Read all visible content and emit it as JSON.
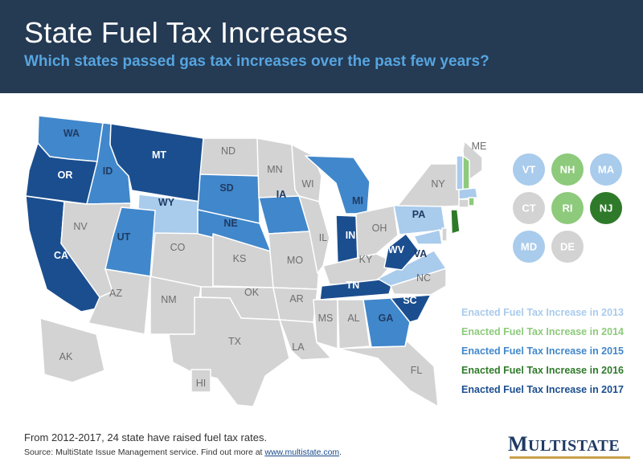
{
  "header": {
    "title": "State Fuel Tax Increases",
    "subtitle": "Which states passed gas tax increases over the past few years?"
  },
  "colors": {
    "header_bg": "#253a53",
    "none": "#d3d3d3",
    "y2013": "#a9cbec",
    "y2014": "#8dca7b",
    "y2015": "#4187cb",
    "y2016": "#2f7a2a",
    "y2017": "#1b4e8f"
  },
  "map": {
    "states": [
      {
        "abbr": "WA",
        "cat": "y2015"
      },
      {
        "abbr": "OR",
        "cat": "y2017"
      },
      {
        "abbr": "CA",
        "cat": "y2017"
      },
      {
        "abbr": "ID",
        "cat": "y2015"
      },
      {
        "abbr": "MT",
        "cat": "y2017"
      },
      {
        "abbr": "WY",
        "cat": "y2013"
      },
      {
        "abbr": "NV",
        "cat": "none"
      },
      {
        "abbr": "UT",
        "cat": "y2015"
      },
      {
        "abbr": "CO",
        "cat": "none"
      },
      {
        "abbr": "AZ",
        "cat": "none"
      },
      {
        "abbr": "NM",
        "cat": "none"
      },
      {
        "abbr": "ND",
        "cat": "none"
      },
      {
        "abbr": "SD",
        "cat": "y2015"
      },
      {
        "abbr": "NE",
        "cat": "y2015"
      },
      {
        "abbr": "KS",
        "cat": "none"
      },
      {
        "abbr": "OK",
        "cat": "none"
      },
      {
        "abbr": "TX",
        "cat": "none"
      },
      {
        "abbr": "MN",
        "cat": "none"
      },
      {
        "abbr": "IA",
        "cat": "y2015"
      },
      {
        "abbr": "MO",
        "cat": "none"
      },
      {
        "abbr": "AR",
        "cat": "none"
      },
      {
        "abbr": "LA",
        "cat": "none"
      },
      {
        "abbr": "WI",
        "cat": "none"
      },
      {
        "abbr": "IL",
        "cat": "none"
      },
      {
        "abbr": "MI",
        "cat": "y2015"
      },
      {
        "abbr": "IN",
        "cat": "y2017"
      },
      {
        "abbr": "OH",
        "cat": "none"
      },
      {
        "abbr": "KY",
        "cat": "none"
      },
      {
        "abbr": "TN",
        "cat": "y2017"
      },
      {
        "abbr": "MS",
        "cat": "none"
      },
      {
        "abbr": "AL",
        "cat": "none"
      },
      {
        "abbr": "GA",
        "cat": "y2015"
      },
      {
        "abbr": "FL",
        "cat": "none"
      },
      {
        "abbr": "SC",
        "cat": "y2017"
      },
      {
        "abbr": "NC",
        "cat": "none"
      },
      {
        "abbr": "VA",
        "cat": "y2013"
      },
      {
        "abbr": "WV",
        "cat": "y2017"
      },
      {
        "abbr": "PA",
        "cat": "y2013"
      },
      {
        "abbr": "NY",
        "cat": "none"
      },
      {
        "abbr": "ME",
        "cat": "none"
      },
      {
        "abbr": "AK",
        "cat": "none"
      },
      {
        "abbr": "HI",
        "cat": "none"
      },
      {
        "abbr": "VT",
        "cat": "y2013"
      },
      {
        "abbr": "NH",
        "cat": "y2014"
      },
      {
        "abbr": "MA",
        "cat": "y2013"
      },
      {
        "abbr": "RI",
        "cat": "y2014"
      },
      {
        "abbr": "CT",
        "cat": "none"
      },
      {
        "abbr": "NJ",
        "cat": "y2016"
      },
      {
        "abbr": "MD",
        "cat": "y2013"
      },
      {
        "abbr": "DE",
        "cat": "none"
      }
    ],
    "small_states": [
      {
        "abbr": "VT",
        "cat": "y2013"
      },
      {
        "abbr": "NH",
        "cat": "y2014"
      },
      {
        "abbr": "MA",
        "cat": "y2013"
      },
      {
        "abbr": "CT",
        "cat": "none"
      },
      {
        "abbr": "RI",
        "cat": "y2014"
      },
      {
        "abbr": "NJ",
        "cat": "y2016"
      },
      {
        "abbr": "MD",
        "cat": "y2013"
      },
      {
        "abbr": "DE",
        "cat": "none"
      }
    ]
  },
  "legend": [
    {
      "label": "Enacted Fuel Tax Increase in 2013",
      "cat": "y2013"
    },
    {
      "label": "Enacted Fuel Tax Increase in 2014",
      "cat": "y2014"
    },
    {
      "label": "Enacted Fuel Tax Increase in 2015",
      "cat": "y2015"
    },
    {
      "label": "Enacted Fuel Tax Increase in 2016",
      "cat": "y2016"
    },
    {
      "label": "Enacted Fuel Tax Increase in 2017",
      "cat": "y2017"
    }
  ],
  "footer": {
    "note": "From 2012-2017, 24 state have raised fuel tax rates.",
    "source_prefix": "Source: MultiState Issue Management service. Find out more at ",
    "source_link": "www.multistate.com",
    "source_suffix": "."
  },
  "logo": {
    "big_m": "M",
    "rest": "ULTISTATE"
  }
}
